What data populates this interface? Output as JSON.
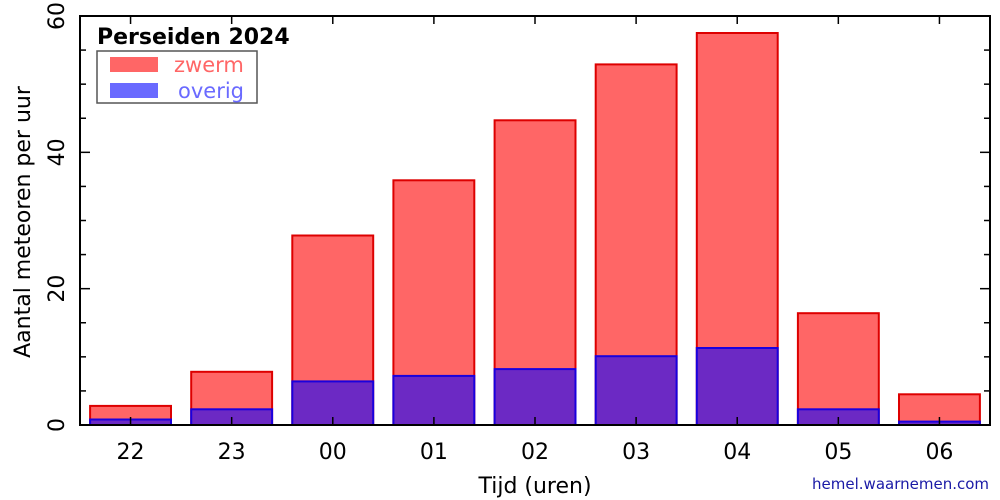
{
  "chart_data": {
    "type": "bar",
    "stacked": "overlaid",
    "title": "Perseiden 2024",
    "xlabel": "Tijd (uren)",
    "ylabel": "Aantal meteoren per uur",
    "ylim": [
      0,
      60
    ],
    "yticks": [
      "0",
      "20",
      "40",
      "60"
    ],
    "categories": [
      "22",
      "23",
      "00",
      "01",
      "02",
      "03",
      "04",
      "05",
      "06"
    ],
    "series": [
      {
        "name": "zwerm",
        "color": "#ff6666",
        "edge_color": "#dd0000",
        "values": [
          2.8,
          7.8,
          27.8,
          35.9,
          44.7,
          52.9,
          57.5,
          16.4,
          4.5
        ]
      },
      {
        "name": "overig",
        "color": "#6c29c4",
        "edge_color": "#1a00dd",
        "legend_color": "#6a6aff",
        "values": [
          0.8,
          2.3,
          6.4,
          7.2,
          8.2,
          10.1,
          11.3,
          2.3,
          0.5
        ]
      }
    ],
    "legend_position": "top-left",
    "grid": false
  },
  "credit": "hemel.waarnemen.com"
}
